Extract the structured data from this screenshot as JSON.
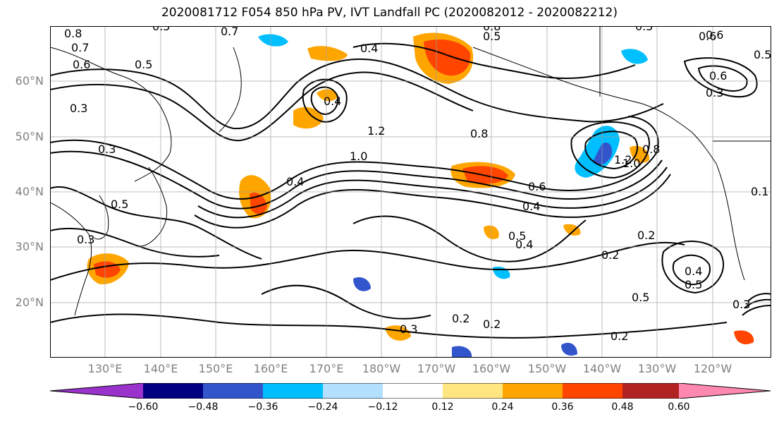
{
  "title": "2020081712 F054 850 hPa PV, IVT Landfall PC (2020082012 - 2020082212)",
  "lat_labels": [
    "60°N",
    "50°N",
    "40°N",
    "30°N",
    "20°N"
  ],
  "lon_labels": [
    "130°E",
    "140°E",
    "150°E",
    "160°E",
    "170°E",
    "180°W",
    "170°W",
    "160°W",
    "150°W",
    "140°W",
    "130°W",
    "120°W"
  ],
  "colorbar": {
    "tick_labels": [
      "−0.60",
      "−0.48",
      "−0.36",
      "−0.24",
      "−0.12",
      "0.12",
      "0.24",
      "0.36",
      "0.48",
      "0.60"
    ],
    "colors": [
      "#9933cc",
      "#000080",
      "#3355cc",
      "#00bfff",
      "#b3e0ff",
      "#ffffff",
      "#ffe680",
      "#ffa500",
      "#ff4500",
      "#b22222",
      "#ff88b0"
    ]
  },
  "contour_labels": [
    "0.5",
    "0.7",
    "0.8",
    "0.7",
    "0.6",
    "0.5",
    "0.4",
    "0.5",
    "0.8",
    "0.5",
    "0.6",
    "0.3",
    "0.3",
    "0.4",
    "0.4",
    "1.2",
    "1.0",
    "0.8",
    "0.6",
    "0.4",
    "1.2",
    "1.0",
    "0.8",
    "0.5",
    "0.3",
    "0.5",
    "0.4",
    "0.2",
    "0.2",
    "0.4",
    "0.5",
    "0.5",
    "0.2",
    "0.2",
    "0.2",
    "0.3",
    "0.6",
    "0.5",
    "0.6",
    "0.3",
    "0.1",
    "0.3"
  ]
}
